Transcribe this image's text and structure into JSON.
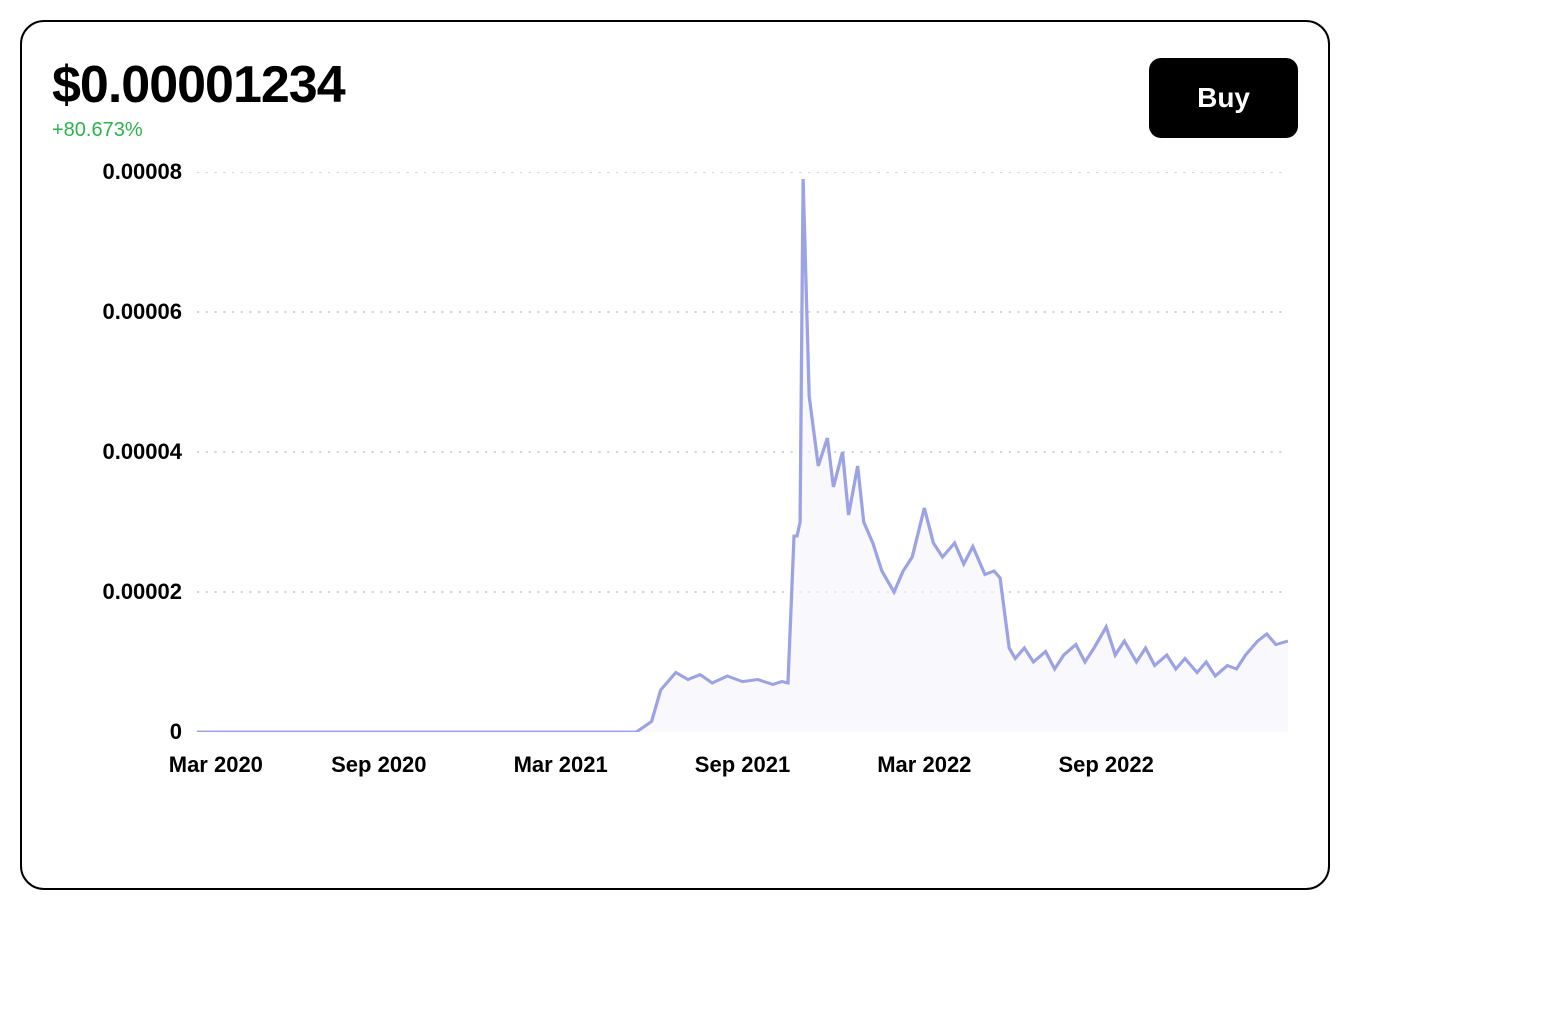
{
  "header": {
    "price_label": "$0.00001234",
    "change_label": "+80.673%",
    "change_color": "#2ab54a",
    "buy_label": "Buy"
  },
  "chart": {
    "type": "line",
    "line_color": "#9ca3e4",
    "area_fill": "#f3f4fb",
    "area_opacity": 0.6,
    "grid_color": "#d4d4d4",
    "background_color": "#ffffff",
    "line_width": 3,
    "y": {
      "min": 0,
      "max": 8e-05,
      "ticks": [
        0,
        2e-05,
        4e-05,
        6e-05,
        8e-05
      ],
      "tick_labels": [
        "0",
        "0.00002",
        "0.00004",
        "0.00006",
        "0.00008"
      ],
      "label_fontsize": 22,
      "label_fontweight": 700
    },
    "x": {
      "min": 0,
      "max": 36,
      "ticks": [
        0,
        6,
        12,
        18,
        24,
        30
      ],
      "tick_labels": [
        "Mar 2020",
        "Sep 2020",
        "Mar 2021",
        "Sep 2021",
        "Mar 2022",
        "Sep 2022"
      ],
      "label_fontsize": 22,
      "label_fontweight": 700
    },
    "series": [
      {
        "name": "price",
        "points": [
          [
            0,
            0.0
          ],
          [
            14.5,
            0.0
          ],
          [
            15.0,
            1.5e-06
          ],
          [
            15.3,
            6e-06
          ],
          [
            15.8,
            8.5e-06
          ],
          [
            16.2,
            7.5e-06
          ],
          [
            16.6,
            8.2e-06
          ],
          [
            17.0,
            7e-06
          ],
          [
            17.5,
            8e-06
          ],
          [
            18.0,
            7.2e-06
          ],
          [
            18.5,
            7.5e-06
          ],
          [
            19.0,
            6.8e-06
          ],
          [
            19.3,
            7.2e-06
          ],
          [
            19.5,
            7e-06
          ],
          [
            19.7,
            2.8e-05
          ],
          [
            19.8,
            2.8e-05
          ],
          [
            19.9,
            3e-05
          ],
          [
            20.0,
            7.9e-05
          ],
          [
            20.2,
            4.8e-05
          ],
          [
            20.5,
            3.8e-05
          ],
          [
            20.8,
            4.2e-05
          ],
          [
            21.0,
            3.5e-05
          ],
          [
            21.3,
            4e-05
          ],
          [
            21.5,
            3.1e-05
          ],
          [
            21.8,
            3.8e-05
          ],
          [
            22.0,
            3e-05
          ],
          [
            22.3,
            2.7e-05
          ],
          [
            22.6,
            2.3e-05
          ],
          [
            23.0,
            2e-05
          ],
          [
            23.3,
            2.3e-05
          ],
          [
            23.6,
            2.5e-05
          ],
          [
            24.0,
            3.2e-05
          ],
          [
            24.3,
            2.7e-05
          ],
          [
            24.6,
            2.5e-05
          ],
          [
            25.0,
            2.7e-05
          ],
          [
            25.3,
            2.4e-05
          ],
          [
            25.6,
            2.65e-05
          ],
          [
            26.0,
            2.25e-05
          ],
          [
            26.3,
            2.3e-05
          ],
          [
            26.5,
            2.2e-05
          ],
          [
            26.8,
            1.2e-05
          ],
          [
            27.0,
            1.05e-05
          ],
          [
            27.3,
            1.2e-05
          ],
          [
            27.6,
            1e-05
          ],
          [
            28.0,
            1.15e-05
          ],
          [
            28.3,
            9e-06
          ],
          [
            28.6,
            1.1e-05
          ],
          [
            29.0,
            1.25e-05
          ],
          [
            29.3,
            1e-05
          ],
          [
            29.6,
            1.2e-05
          ],
          [
            30.0,
            1.5e-05
          ],
          [
            30.3,
            1.1e-05
          ],
          [
            30.6,
            1.3e-05
          ],
          [
            31.0,
            1e-05
          ],
          [
            31.3,
            1.2e-05
          ],
          [
            31.6,
            9.5e-06
          ],
          [
            32.0,
            1.1e-05
          ],
          [
            32.3,
            9e-06
          ],
          [
            32.6,
            1.05e-05
          ],
          [
            33.0,
            8.5e-06
          ],
          [
            33.3,
            1e-05
          ],
          [
            33.6,
            8e-06
          ],
          [
            34.0,
            9.5e-06
          ],
          [
            34.3,
            9e-06
          ],
          [
            34.6,
            1.1e-05
          ],
          [
            35.0,
            1.3e-05
          ],
          [
            35.3,
            1.4e-05
          ],
          [
            35.6,
            1.25e-05
          ],
          [
            36.0,
            1.3e-05
          ]
        ]
      }
    ]
  }
}
